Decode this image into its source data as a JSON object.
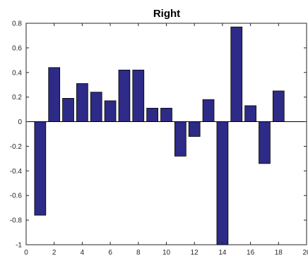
{
  "chart_data": {
    "type": "bar",
    "title": "Right",
    "xlabel": "",
    "ylabel": "",
    "x": [
      1,
      2,
      3,
      4,
      5,
      6,
      7,
      8,
      9,
      10,
      11,
      12,
      13,
      14,
      15,
      16,
      17,
      18
    ],
    "values": [
      -0.76,
      0.44,
      0.19,
      0.31,
      0.24,
      0.17,
      0.42,
      0.42,
      0.11,
      0.11,
      -0.28,
      -0.12,
      0.18,
      -1.0,
      0.77,
      0.13,
      -0.34,
      0.25
    ],
    "xlim": [
      0,
      20
    ],
    "ylim": [
      -1,
      0.8
    ],
    "xticks": [
      0,
      2,
      4,
      6,
      8,
      10,
      12,
      14,
      16,
      18,
      20
    ],
    "xtick_labels": [
      "0",
      "2",
      "4",
      "6",
      "8",
      "10",
      "12",
      "14",
      "16",
      "18",
      "20"
    ],
    "yticks": [
      -1,
      -0.8,
      -0.6,
      -0.4,
      -0.2,
      0,
      0.2,
      0.4,
      0.6,
      0.8
    ],
    "ytick_labels": [
      "-1",
      "-0.8",
      "-0.6",
      "-0.4",
      "-0.2",
      "0",
      "0.2",
      "0.4",
      "0.6",
      "0.8"
    ],
    "grid": false,
    "bar_color": "#2e2a87",
    "edge_color": "#000000",
    "axis_color": "#262626"
  }
}
